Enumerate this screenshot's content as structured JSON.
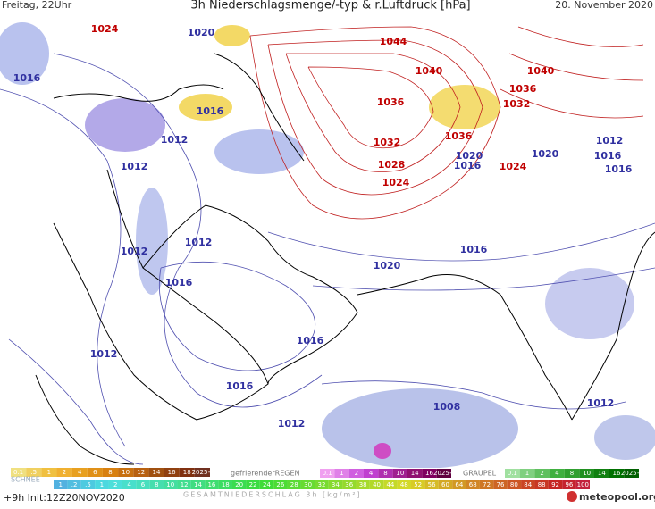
{
  "header": {
    "left": "Freitag, 22Uhr",
    "title": "3h Niederschlagsmenge/-typ & r.Luftdruck [hPa]",
    "right": "20. November 2020"
  },
  "isobar_labels": [
    {
      "text": "1024",
      "color": "#c00000"
    },
    {
      "text": "1020",
      "color": "#3030a0"
    },
    {
      "text": "1016",
      "color": "#3030a0"
    },
    {
      "text": "1044",
      "color": "#c00000"
    },
    {
      "text": "1040",
      "color": "#c00000"
    },
    {
      "text": "1040",
      "color": "#c00000"
    },
    {
      "text": "1036",
      "color": "#c00000"
    },
    {
      "text": "1032",
      "color": "#c00000"
    },
    {
      "text": "1036",
      "color": "#c00000"
    },
    {
      "text": "1016",
      "color": "#3030a0"
    },
    {
      "text": "1012",
      "color": "#3030a0"
    },
    {
      "text": "1032",
      "color": "#c00000"
    },
    {
      "text": "1036",
      "color": "#c00000"
    },
    {
      "text": "1012",
      "color": "#3030a0"
    },
    {
      "text": "1012",
      "color": "#3030a0"
    },
    {
      "text": "1028",
      "color": "#c00000"
    },
    {
      "text": "1020",
      "color": "#3030a0"
    },
    {
      "text": "1016",
      "color": "#3030a0"
    },
    {
      "text": "1024",
      "color": "#c00000"
    },
    {
      "text": "1020",
      "color": "#3030a0"
    },
    {
      "text": "1016",
      "color": "#3030a0"
    },
    {
      "text": "1016",
      "color": "#3030a0"
    },
    {
      "text": "1024",
      "color": "#c00000"
    },
    {
      "text": "1012",
      "color": "#3030a0"
    },
    {
      "text": "1012",
      "color": "#3030a0"
    },
    {
      "text": "1016",
      "color": "#3030a0"
    },
    {
      "text": "1020",
      "color": "#3030a0"
    },
    {
      "text": "1016",
      "color": "#3030a0"
    },
    {
      "text": "1016",
      "color": "#3030a0"
    },
    {
      "text": "1012",
      "color": "#3030a0"
    },
    {
      "text": "1016",
      "color": "#3030a0"
    },
    {
      "text": "1008",
      "color": "#3030a0"
    },
    {
      "text": "1012",
      "color": "#3030a0"
    },
    {
      "text": "1012",
      "color": "#3030a0"
    }
  ],
  "legend": {
    "snow_title": "SCHNEE",
    "rain_title": "gefrierenderREGEN",
    "graupel_title": "GRAUPEL",
    "snow": [
      "0.1",
      ".5",
      "1",
      "2",
      "4",
      "6",
      "8",
      "10",
      "12",
      "14",
      "16",
      "18",
      "2025+"
    ],
    "rain": [
      "0.1",
      "1",
      "2",
      "4",
      "8",
      "10",
      "14",
      "16",
      "2025+"
    ],
    "graupel": [
      "0.1",
      "1",
      "2",
      "4",
      "8",
      "10",
      "14",
      "16",
      "2025+"
    ],
    "total": [
      "1",
      ".2",
      ".5",
      "1",
      "2",
      "4",
      "6",
      "8",
      "10",
      "12",
      "14",
      "16",
      "18",
      "20",
      "22",
      "24",
      "26",
      "28",
      "30",
      "32",
      "34",
      "36",
      "38",
      "40",
      "44",
      "48",
      "52",
      "56",
      "60",
      "64",
      "68",
      "72",
      "76",
      "80",
      "84",
      "88",
      "92",
      "96",
      "100"
    ],
    "total_title": "GESAMTNIEDERSCHLAG 3h [kg/m²]"
  },
  "footer": {
    "init": "+9h Init:12Z20NOV2020",
    "brand": "meteopool.org"
  }
}
